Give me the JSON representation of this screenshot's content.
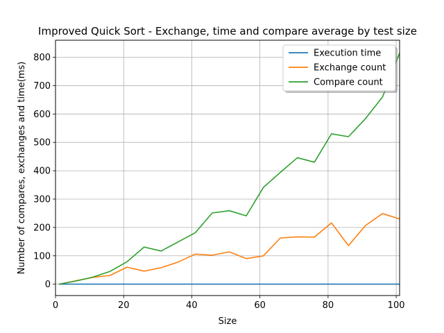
{
  "chart_data": {
    "type": "line",
    "title": "Improved Quick Sort - Exchange, time and compare average by test size",
    "xlabel": "Size",
    "ylabel": "Number of compares, exchanges and time(ms)",
    "xlim": [
      0,
      101
    ],
    "ylim": [
      -40,
      860
    ],
    "xticks": [
      0,
      20,
      40,
      60,
      80,
      100
    ],
    "yticks": [
      0,
      100,
      200,
      300,
      400,
      500,
      600,
      700,
      800
    ],
    "grid": true,
    "legend_position": "top-right",
    "x": [
      1,
      6,
      11,
      16,
      21,
      26,
      31,
      36,
      41,
      46,
      51,
      56,
      61,
      66,
      71,
      76,
      81,
      86,
      91,
      96,
      101
    ],
    "series": [
      {
        "name": "Execution time",
        "color": "#1f77b4",
        "values": [
          0,
          0,
          0,
          0,
          0,
          0,
          0,
          0,
          0,
          0,
          0,
          0,
          0,
          0,
          0,
          0,
          0,
          0,
          0,
          0,
          0
        ]
      },
      {
        "name": "Exchange count",
        "color": "#ff7f0e",
        "values": [
          0,
          12,
          24,
          31,
          60,
          46,
          58,
          78,
          106,
          102,
          114,
          90,
          100,
          163,
          167,
          166,
          216,
          136,
          207,
          249,
          230
        ]
      },
      {
        "name": "Compare count",
        "color": "#2ca02c",
        "values": [
          0,
          11,
          25,
          45,
          79,
          131,
          117,
          149,
          181,
          251,
          259,
          241,
          341,
          394,
          446,
          430,
          530,
          520,
          584,
          660,
          815
        ]
      }
    ]
  }
}
